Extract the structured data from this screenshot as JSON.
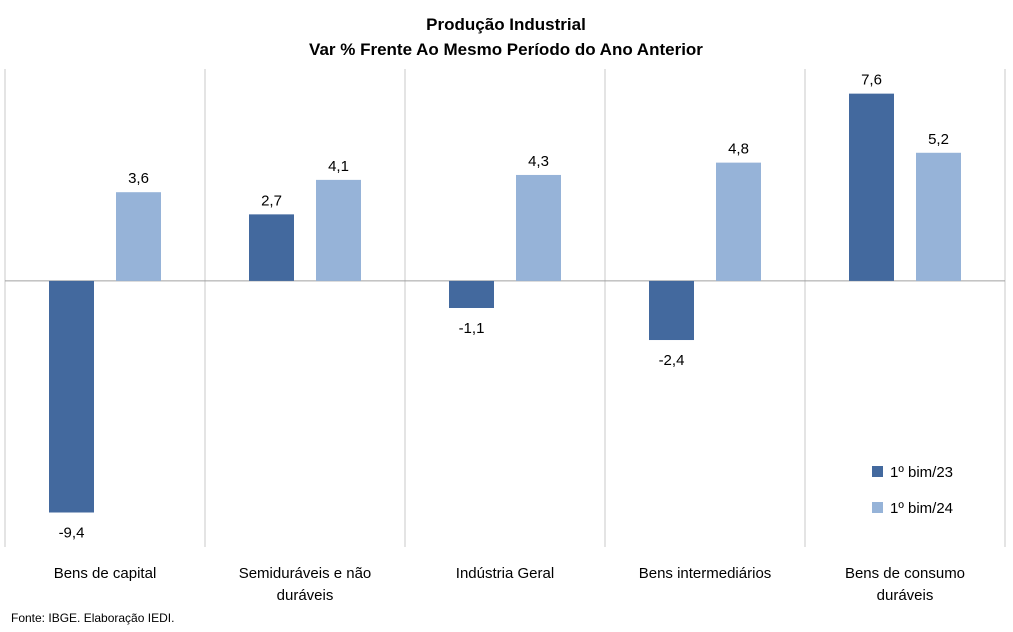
{
  "chart_data": {
    "type": "bar",
    "title": "Produção  Industrial",
    "subtitle": "Var % Frente Ao Mesmo Período do Ano Anterior",
    "categories": [
      [
        "Bens de capital"
      ],
      [
        "Semiduráveis e não",
        "duráveis"
      ],
      [
        "Indústria Geral"
      ],
      [
        "Bens intermediários"
      ],
      [
        "Bens de consumo",
        "duráveis"
      ]
    ],
    "series": [
      {
        "name": "1º bim/23",
        "color": "#43699E",
        "values": [
          -9.4,
          2.7,
          -1.1,
          -2.4,
          7.6
        ],
        "labels": [
          "-9,4",
          "2,7",
          "-1,1",
          "-2,4",
          "7,6"
        ]
      },
      {
        "name": "1º bim/24",
        "color": "#96B3D8",
        "values": [
          3.6,
          4.1,
          4.3,
          4.8,
          5.2
        ],
        "labels": [
          "3,6",
          "4,1",
          "4,3",
          "4,8",
          "5,2"
        ]
      }
    ],
    "ylim": [
      -10.8,
      8.6
    ],
    "grid": false,
    "category_separators": true,
    "legend_position": "bottom-right"
  },
  "source": "Fonte: IBGE. Elaboração IEDI."
}
